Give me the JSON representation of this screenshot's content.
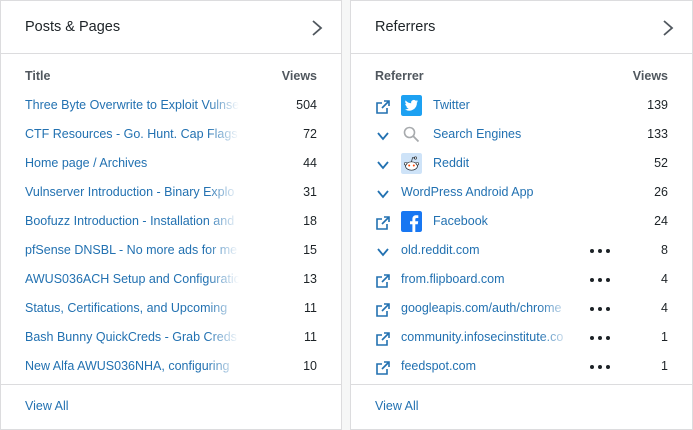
{
  "posts": {
    "title": "Posts & Pages",
    "col_title": "Title",
    "col_views": "Views",
    "rows": [
      {
        "title": "Three Byte Overwrite to Exploit Vulnse",
        "views": "504"
      },
      {
        "title": "CTF Resources - Go. Hunt. Cap Flags",
        "views": "72"
      },
      {
        "title": "Home page / Archives",
        "views": "44"
      },
      {
        "title": "Vulnserver Introduction - Binary Explo",
        "views": "31"
      },
      {
        "title": "Boofuzz Introduction - Installation and",
        "views": "18"
      },
      {
        "title": "pfSense DNSBL - No more ads for me",
        "views": "15"
      },
      {
        "title": "AWUS036ACH Setup and Configuratio",
        "views": "13"
      },
      {
        "title": "Status, Certifications, and Upcoming",
        "views": "11"
      },
      {
        "title": "Bash Bunny QuickCreds - Grab Creds",
        "views": "11"
      },
      {
        "title": "New Alfa AWUS036NHA, configuring",
        "views": "10"
      }
    ],
    "view_all": "View All"
  },
  "referrers": {
    "title": "Referrers",
    "col_referrer": "Referrer",
    "col_views": "Views",
    "rows": [
      {
        "label": "Twitter",
        "views": "139",
        "action": "external-link-icon",
        "logo": "twitter-logo"
      },
      {
        "label": "Search Engines",
        "views": "133",
        "action": "chevron-down-icon",
        "logo": "search-icon"
      },
      {
        "label": "Reddit",
        "views": "52",
        "action": "chevron-down-icon",
        "logo": "reddit-logo"
      },
      {
        "label": "WordPress Android App",
        "views": "26",
        "action": "chevron-down-icon",
        "logo": null
      },
      {
        "label": "Facebook",
        "views": "24",
        "action": "external-link-icon",
        "logo": "facebook-logo"
      },
      {
        "label": "old.reddit.com",
        "views": "8",
        "action": "chevron-down-icon",
        "logo": null,
        "more": true
      },
      {
        "label": "from.flipboard.com",
        "views": "4",
        "action": "external-link-icon",
        "logo": null,
        "more": true
      },
      {
        "label": "googleapis.com/auth/chrome",
        "views": "4",
        "action": "external-link-icon",
        "logo": null,
        "more": true
      },
      {
        "label": "community.infosecinstitute.co",
        "views": "1",
        "action": "external-link-icon",
        "logo": null,
        "more": true
      },
      {
        "label": "feedspot.com",
        "views": "1",
        "action": "external-link-icon",
        "logo": null,
        "more": true
      }
    ],
    "view_all": "View All"
  },
  "colors": {
    "link": "#2271b1",
    "twitter": "#1da1f2",
    "facebook": "#1877f2",
    "reddit": "#ff4500"
  }
}
